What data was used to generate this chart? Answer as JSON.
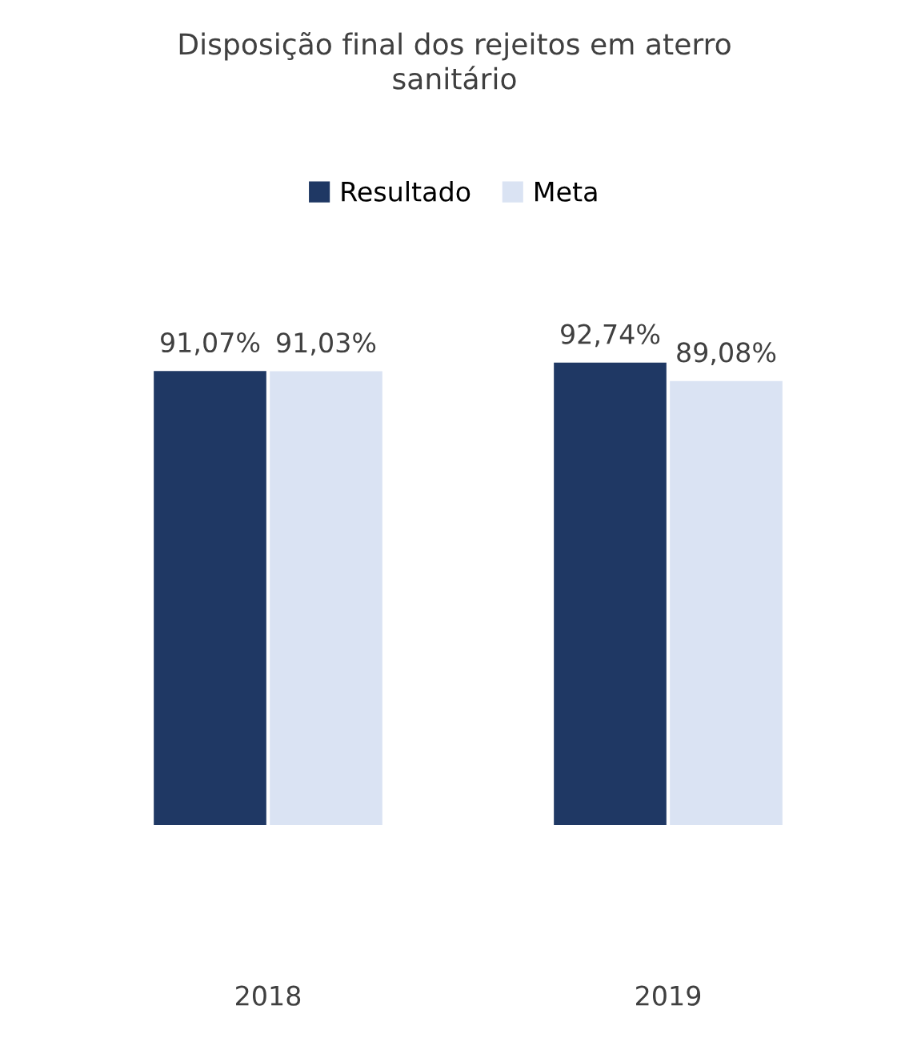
{
  "chart_data": {
    "type": "bar",
    "title": "Disposição final dos rejeitos em aterro\nsanitário",
    "categories": [
      "2018",
      "2019"
    ],
    "series": [
      {
        "name": "Resultado",
        "color": "#1f3864",
        "values": [
          91.07,
          92.74
        ],
        "value_labels": [
          "91,07%",
          "92,74%"
        ]
      },
      {
        "name": "Meta",
        "color": "#dae3f3",
        "values": [
          91.03,
          89.08
        ],
        "value_labels": [
          "91,03%",
          "89,08%"
        ]
      }
    ],
    "tick_labels": "x",
    "grid": false,
    "legend": "top"
  }
}
